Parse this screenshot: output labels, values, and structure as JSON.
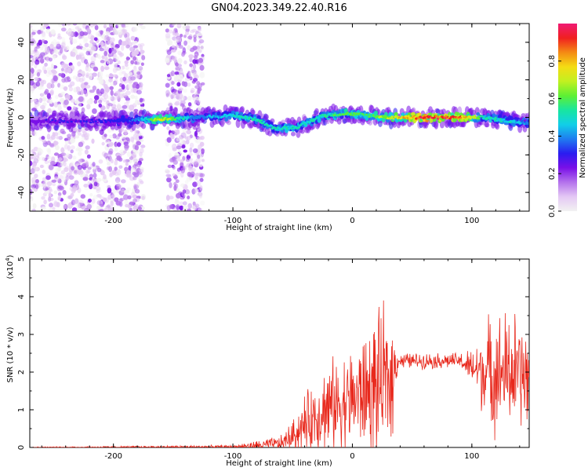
{
  "title": "GN04.2023.349.22.40.R16",
  "colors": {
    "snr_line": "#e8281c",
    "axis": "#000000",
    "colormap": [
      "#f2f2f2",
      "#e4c8f4",
      "#b472ec",
      "#7a10e8",
      "#2a1cf0",
      "#1f7cf0",
      "#11cfe8",
      "#18e6a0",
      "#5ef033",
      "#c2f020",
      "#f4dc14",
      "#f48a14",
      "#f02020",
      "#f01a74"
    ]
  },
  "chart_data": [
    {
      "type": "heatmap",
      "title": "GN04.2023.349.22.40.R16",
      "xlabel": "Height of straight line (km)",
      "ylabel": "Frequency (Hz)",
      "xlim": [
        -270,
        148
      ],
      "ylim": [
        -50,
        50
      ],
      "x_ticks": [
        -200,
        -100,
        0,
        100
      ],
      "y_ticks": [
        -40,
        -20,
        0,
        20,
        40
      ],
      "colorbar": {
        "label": "Normalized spectral amplitude",
        "range": [
          0,
          1
        ],
        "ticks": [
          "0.0",
          "0.2",
          "0.4",
          "0.6",
          "0.8"
        ],
        "tick_values": [
          0.0,
          0.2,
          0.4,
          0.6,
          0.8
        ]
      },
      "ridge_profile": [
        {
          "x": -270,
          "f": -2,
          "amp": 0.25
        },
        {
          "x": -200,
          "f": -2,
          "amp": 0.3
        },
        {
          "x": -180,
          "f": -1,
          "amp": 0.4
        },
        {
          "x": -160,
          "f": -1,
          "amp": 0.75
        },
        {
          "x": -130,
          "f": 0,
          "amp": 0.4
        },
        {
          "x": -100,
          "f": 1,
          "amp": 0.5
        },
        {
          "x": -80,
          "f": -1,
          "amp": 0.55
        },
        {
          "x": -65,
          "f": -6,
          "amp": 0.5
        },
        {
          "x": -45,
          "f": -5,
          "amp": 0.55
        },
        {
          "x": -25,
          "f": 1,
          "amp": 0.55
        },
        {
          "x": -5,
          "f": 2,
          "amp": 0.6
        },
        {
          "x": 15,
          "f": 1,
          "amp": 0.6
        },
        {
          "x": 30,
          "f": 0,
          "amp": 0.7
        },
        {
          "x": 60,
          "f": 0,
          "amp": 0.98
        },
        {
          "x": 90,
          "f": 0,
          "amp": 0.9
        },
        {
          "x": 110,
          "f": 0,
          "amp": 0.55
        },
        {
          "x": 130,
          "f": -2,
          "amp": 0.5
        },
        {
          "x": 148,
          "f": -3,
          "amp": 0.45
        }
      ],
      "noise_regions": [
        {
          "x": [
            -270,
            -175
          ],
          "f": [
            -50,
            50
          ],
          "amp": 0.15
        },
        {
          "x": [
            -155,
            -125
          ],
          "f": [
            -50,
            50
          ],
          "amp": 0.2
        }
      ]
    },
    {
      "type": "line",
      "xlabel": "Height of straight line (km)",
      "ylabel": "SNR (10 * v/v)",
      "y_multiplier": "(x10",
      "y_multiplier_exponent": "4",
      "xlim": [
        -270,
        148
      ],
      "ylim": [
        0,
        5
      ],
      "x_ticks": [
        -200,
        -100,
        0,
        100
      ],
      "y_ticks": [
        0,
        1,
        2,
        3,
        4,
        5
      ],
      "envelope": [
        {
          "x": -270,
          "base": 0.0,
          "amp": 0.02
        },
        {
          "x": -100,
          "base": 0.02,
          "amp": 0.05
        },
        {
          "x": -80,
          "base": 0.05,
          "amp": 0.15
        },
        {
          "x": -60,
          "base": 0.1,
          "amp": 0.25
        },
        {
          "x": -50,
          "base": 0.3,
          "amp": 0.5
        },
        {
          "x": -40,
          "base": 0.6,
          "amp": 0.9
        },
        {
          "x": -25,
          "base": 1.0,
          "amp": 1.4
        },
        {
          "x": 0,
          "base": 1.3,
          "amp": 1.6
        },
        {
          "x": 20,
          "base": 1.6,
          "amp": 2.2
        },
        {
          "x": 32,
          "base": 1.8,
          "amp": 2.4
        },
        {
          "x": 38,
          "base": 2.3,
          "amp": 0.25
        },
        {
          "x": 90,
          "base": 2.3,
          "amp": 0.25
        },
        {
          "x": 100,
          "base": 2.1,
          "amp": 0.6
        },
        {
          "x": 115,
          "base": 2.0,
          "amp": 1.8
        },
        {
          "x": 135,
          "base": 2.0,
          "amp": 2.0
        },
        {
          "x": 148,
          "base": 1.8,
          "amp": 1.5
        }
      ]
    }
  ]
}
